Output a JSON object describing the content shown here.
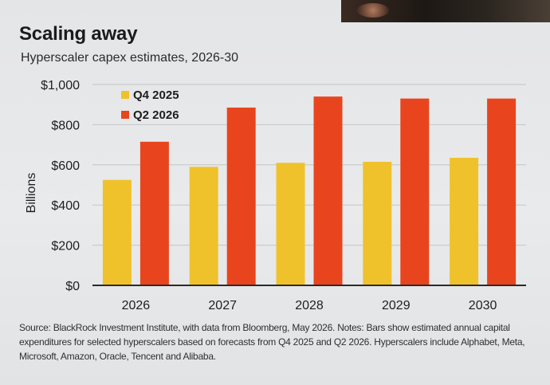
{
  "header": {
    "title": "Scaling away",
    "subtitle": "Hyperscaler capex estimates, 2026-30"
  },
  "chart_data": {
    "type": "bar",
    "categories": [
      "2026",
      "2027",
      "2028",
      "2029",
      "2030"
    ],
    "series": [
      {
        "name": "Q4 2025",
        "values": [
          525,
          590,
          610,
          615,
          635
        ],
        "color": "#efc22c"
      },
      {
        "name": "Q2 2026",
        "values": [
          715,
          885,
          940,
          930,
          930
        ],
        "color": "#e8451e"
      }
    ],
    "ylabel": "Billions",
    "ylim": [
      0,
      1000
    ],
    "yticks": [
      0,
      200,
      400,
      600,
      800,
      1000
    ],
    "ytick_labels": [
      "$0",
      "$200",
      "$400",
      "$600",
      "$800",
      "$1,000"
    ],
    "grid": true,
    "legend_position": "top-left"
  },
  "source_note": "Source: BlackRock Investment Institute, with data from Bloomberg, May 2026. Notes: Bars show estimated annual capital expenditures for selected hyperscalers based on forecasts from Q4 2025 and Q2 2026. Hyperscalers include Alphabet, Meta, Microsoft, Amazon, Oracle, Tencent and Alibaba."
}
